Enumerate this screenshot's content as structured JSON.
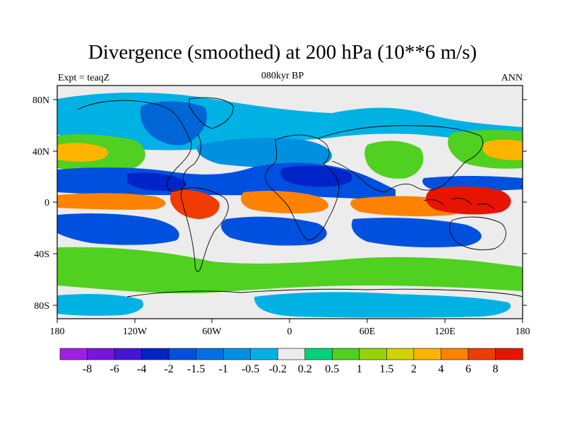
{
  "header": {
    "title": "Divergence (smoothed) at 200 hPa (10**6 m/s)",
    "experiment": "Expt = teaqZ",
    "period": "080kyr BP",
    "season": "ANN"
  },
  "map": {
    "projection": "cylindrical equidistant",
    "variable": "Divergence (smoothed) at 200 hPa",
    "units": "10**6 m/s",
    "lat_ticks": [
      "80N",
      "40N",
      "0",
      "40S",
      "80S"
    ],
    "lon_ticks": [
      "180",
      "120W",
      "60W",
      "0",
      "60E",
      "120E",
      "180"
    ],
    "fill_regions": [
      {
        "name": "arctic-cyan",
        "level": -0.5,
        "color": "#00b2e4"
      },
      {
        "name": "greenland-blue",
        "level": -1.5,
        "color": "#0066d6"
      },
      {
        "name": "atlantic-jet-cyan",
        "level": -1,
        "color": "#0090e0"
      },
      {
        "name": "pacific-jet-green",
        "level": 1,
        "color": "#50d020"
      },
      {
        "name": "pacific-jet-yellow",
        "level": 2,
        "color": "#ffb400"
      },
      {
        "name": "tibet-green",
        "level": 1,
        "color": "#50d020"
      },
      {
        "name": "subtropics-n-blue",
        "level": -2,
        "color": "#0050e0"
      },
      {
        "name": "sahara-dark-blue",
        "level": -4,
        "color": "#0024c8"
      },
      {
        "name": "itcz-pacific-orange",
        "level": 4,
        "color": "#ff8200"
      },
      {
        "name": "amazon-red",
        "level": 6,
        "color": "#f03c00"
      },
      {
        "name": "africa-orange",
        "level": 4,
        "color": "#ff8200"
      },
      {
        "name": "indian-ocean-orange",
        "level": 4,
        "color": "#ff8200"
      },
      {
        "name": "maritime-continent-red",
        "level": 8,
        "color": "#e61400"
      },
      {
        "name": "subtropics-s-blue",
        "level": -2,
        "color": "#0050e0"
      },
      {
        "name": "southern-ocean-green",
        "level": 1,
        "color": "#50d020"
      },
      {
        "name": "antarctic-cyan",
        "level": -0.5,
        "color": "#00b2e4"
      }
    ]
  },
  "colorbar": {
    "labels": [
      "-8",
      "-6",
      "-4",
      "-2",
      "-1.5",
      "-1",
      "-0.5",
      "-0.2",
      "0.2",
      "0.5",
      "1",
      "1.5",
      "2",
      "4",
      "6",
      "8"
    ],
    "colors": [
      "#a01ee6",
      "#7814e0",
      "#4614d8",
      "#0024c8",
      "#0050e0",
      "#0070e4",
      "#0090e0",
      "#00b2e4",
      "#ececec",
      "#00d27a",
      "#50d020",
      "#96d20a",
      "#d2d200",
      "#ffb400",
      "#ff8200",
      "#f03c00",
      "#e61400"
    ]
  }
}
